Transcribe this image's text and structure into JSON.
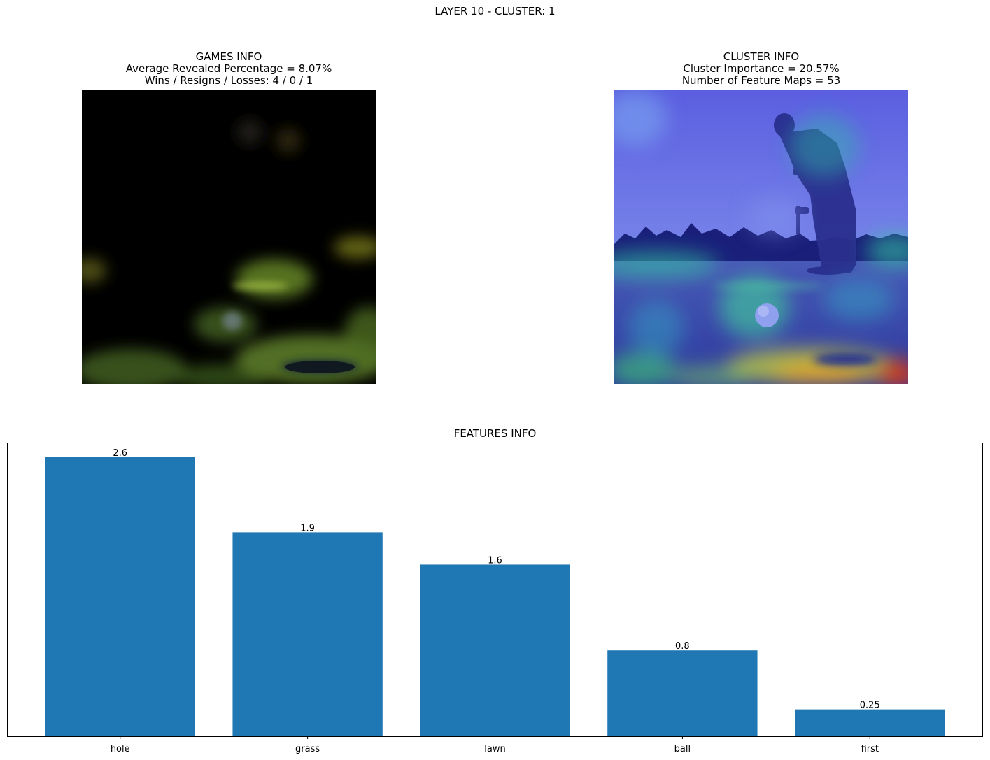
{
  "figure": {
    "title": "LAYER 10 - CLUSTER: 1"
  },
  "games_info": {
    "heading": "GAMES INFO",
    "line1": "Average Revealed Percentage = 8.07%",
    "line2": "Wins / Resigns / Losses: 4 / 0 / 1"
  },
  "cluster_info": {
    "heading": "CLUSTER INFO",
    "line1": "Cluster Importance = 20.57%",
    "line2": "Number of Feature Maps = 53"
  },
  "chart_data": {
    "type": "bar",
    "title": "FEATURES INFO",
    "xlabel": "",
    "ylabel": "",
    "categories": [
      "hole",
      "grass",
      "lawn",
      "ball",
      "first"
    ],
    "values": [
      2.6,
      1.9,
      1.6,
      0.8,
      0.25
    ],
    "data_labels": [
      "2.6",
      "1.9",
      "1.6",
      "0.8",
      "0.25"
    ],
    "ylim": [
      0,
      2.73
    ],
    "bar_color": "#1f77b4",
    "grid": false,
    "yaxis_ticks_visible": false
  }
}
